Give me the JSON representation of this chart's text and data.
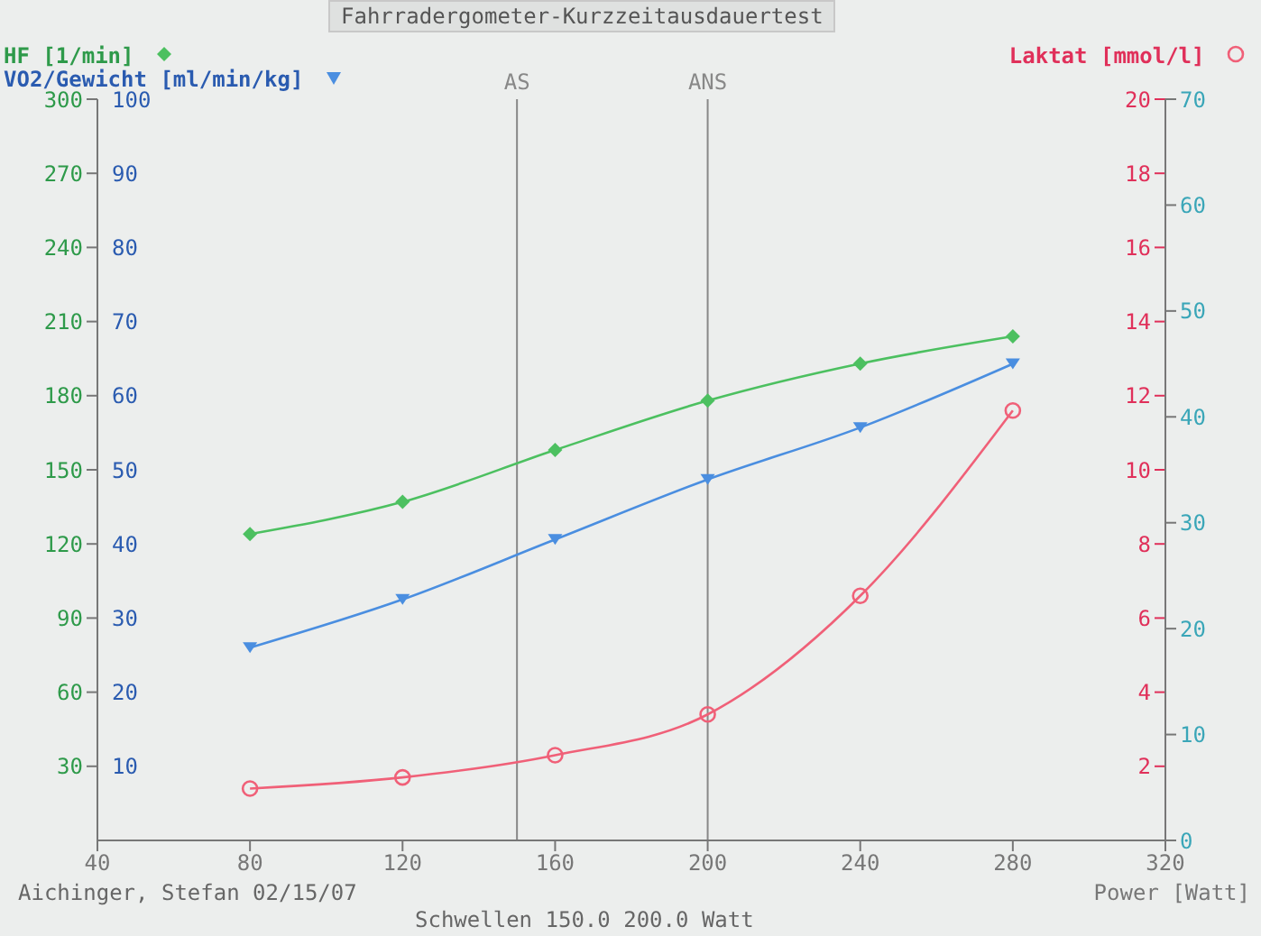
{
  "chart_data": {
    "type": "line",
    "title": "Fahrradergometer-Kurzzeitausdauertest",
    "xlabel": "Power [Watt]",
    "ylabel": "HF [1/min]",
    "y2label": "VO2/Gewicht [ml/min/kg]",
    "y3label": "Laktat [mmol/l]",
    "x": [
      80,
      120,
      160,
      200,
      240,
      280
    ],
    "series": [
      {
        "color": "#4cc060",
        "marker": "diamond",
        "axis": "y",
        "values": [
          124,
          137,
          158,
          178,
          193,
          204
        ]
      },
      {
        "color": "#4a8ee0",
        "marker": "triangle",
        "axis": "y2",
        "values": [
          26,
          32.5,
          40.6,
          48.7,
          55.7,
          64.3
        ]
      },
      {
        "color": "#f06078",
        "marker": "circle",
        "axis": "y3",
        "values": [
          1.4,
          1.7,
          2.3,
          3.4,
          6.6,
          11.6
        ]
      }
    ],
    "xlim": [
      40,
      320
    ],
    "xticks": [
      40,
      80,
      120,
      160,
      200,
      240,
      280,
      320
    ],
    "ylim": [
      0,
      300
    ],
    "yticks": [
      30,
      60,
      90,
      120,
      150,
      180,
      210,
      240,
      270,
      300
    ],
    "y2lim": [
      0,
      100
    ],
    "y2ticks": [
      10,
      20,
      30,
      40,
      50,
      60,
      70,
      80,
      90,
      100
    ],
    "y3lim": [
      0,
      20
    ],
    "y3ticks": [
      2,
      4,
      6,
      8,
      10,
      12,
      14,
      16,
      18,
      20
    ],
    "ref_lines": [
      {
        "axis": "x",
        "value": 150,
        "label": "AS",
        "color": "#888888"
      },
      {
        "axis": "x",
        "value": 200,
        "label": "ANS",
        "color": "#888888"
      }
    ],
    "annotations": [
      "Aichinger, Stefan  02/15/07",
      "Schwellen 150.0 200.0 Watt",
      "0",
      "10",
      "20",
      "30",
      "40",
      "50",
      "60",
      "70"
    ]
  }
}
